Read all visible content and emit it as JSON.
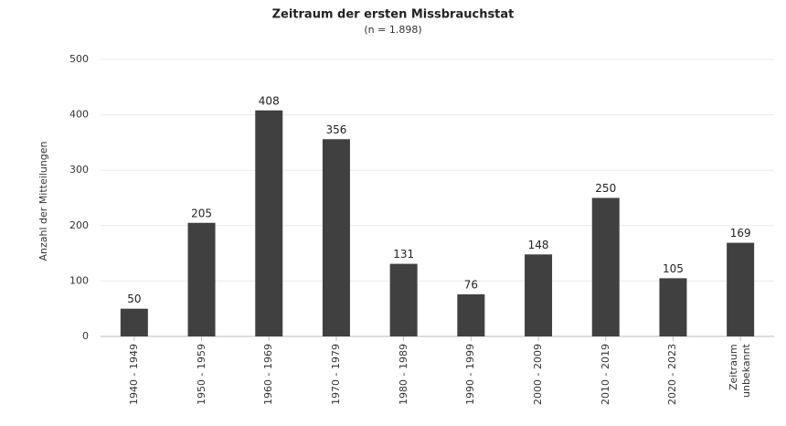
{
  "chart_data": {
    "type": "bar",
    "title": "Zeitraum der ersten Missbrauchstat",
    "subtitle": "(n = 1.898)",
    "y_label": "Anzahl der Mitteilungen",
    "categories": [
      "1940 - 1949",
      "1950 - 1959",
      "1960 - 1969",
      "1970 - 1979",
      "1980 - 1989",
      "1990 - 1999",
      "2000 - 2009",
      "2010 - 2019",
      "2020 - 2023",
      "Zeitraum unbekannt"
    ],
    "values": [
      50,
      205,
      408,
      356,
      131,
      76,
      148,
      250,
      105,
      169
    ],
    "color": "#404040",
    "ylim": [
      0,
      500
    ],
    "yticks": [
      0,
      100,
      200,
      300,
      400,
      500
    ],
    "grid": true
  }
}
